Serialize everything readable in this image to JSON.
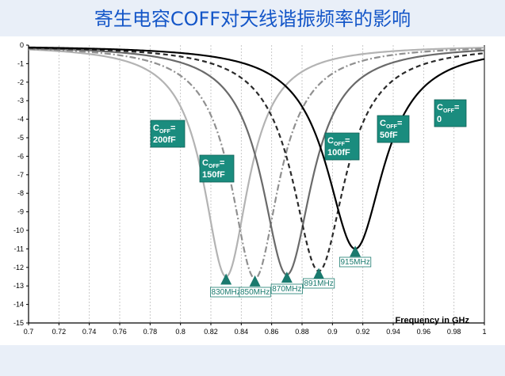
{
  "title": "寄生电容COFF对天线谐振频率的影响",
  "chart_data": {
    "type": "line",
    "xlabel": "Frequency in GHz",
    "ylabel": "",
    "xlim": [
      0.7,
      1.0
    ],
    "ylim": [
      -15,
      0
    ],
    "x_ticks": [
      "0.7",
      "0.72",
      "0.74",
      "0.76",
      "0.78",
      "0.8",
      "0.82",
      "0.84",
      "0.86",
      "0.88",
      "0.9",
      "0.92",
      "0.94",
      "0.96",
      "0.98",
      "1"
    ],
    "y_ticks": [
      "0",
      "-1",
      "-2",
      "-3",
      "-4",
      "-5",
      "-6",
      "-7",
      "-8",
      "-9",
      "-10",
      "-11",
      "-12",
      "-13",
      "-14",
      "-15"
    ],
    "grid": "vertical",
    "series": [
      {
        "name": "COFF=200fF",
        "label_main": "C",
        "label_sub": "OFF",
        "label_eq": "=",
        "label_val": "200fF",
        "f0": 0.83,
        "min": -12.5,
        "width": 0.018,
        "color": "#b3b3b3",
        "dash": "solid"
      },
      {
        "name": "COFF=150fF",
        "label_main": "C",
        "label_sub": "OFF",
        "label_eq": "=",
        "label_val": "150fF",
        "f0": 0.849,
        "min": -12.6,
        "width": 0.019,
        "color": "#909090",
        "dash": "dashdot"
      },
      {
        "name": "COFF=100fF",
        "label_main": "C",
        "label_sub": "OFF",
        "label_eq": "=",
        "label_val": "100fF",
        "f0": 0.87,
        "min": -12.4,
        "width": 0.02,
        "color": "#6a6a6a",
        "dash": "solid"
      },
      {
        "name": "COFF=50fF",
        "label_main": "C",
        "label_sub": "OFF",
        "label_eq": "=",
        "label_val": "50fF",
        "f0": 0.891,
        "min": -12.2,
        "width": 0.021,
        "color": "#2a2a2a",
        "dash": "dashed"
      },
      {
        "name": "COFF=0",
        "label_main": "C",
        "label_sub": "OFF",
        "label_eq": "=",
        "label_val": "0",
        "f0": 0.915,
        "min": -11.0,
        "width": 0.023,
        "color": "#000000",
        "dash": "solid"
      }
    ],
    "markers": [
      {
        "freq": 0.83,
        "value": -12.5,
        "label": "830MHz"
      },
      {
        "freq": 0.849,
        "value": -12.6,
        "label": "850MHz"
      },
      {
        "freq": 0.87,
        "value": -12.4,
        "label": "870MHz"
      },
      {
        "freq": 0.891,
        "value": -12.2,
        "label": "891MHz"
      },
      {
        "freq": 0.915,
        "value": -11.0,
        "label": "915MHz"
      }
    ],
    "colors": {
      "label_box": "#1a8c7e",
      "marker": "#1a7a6e"
    }
  }
}
